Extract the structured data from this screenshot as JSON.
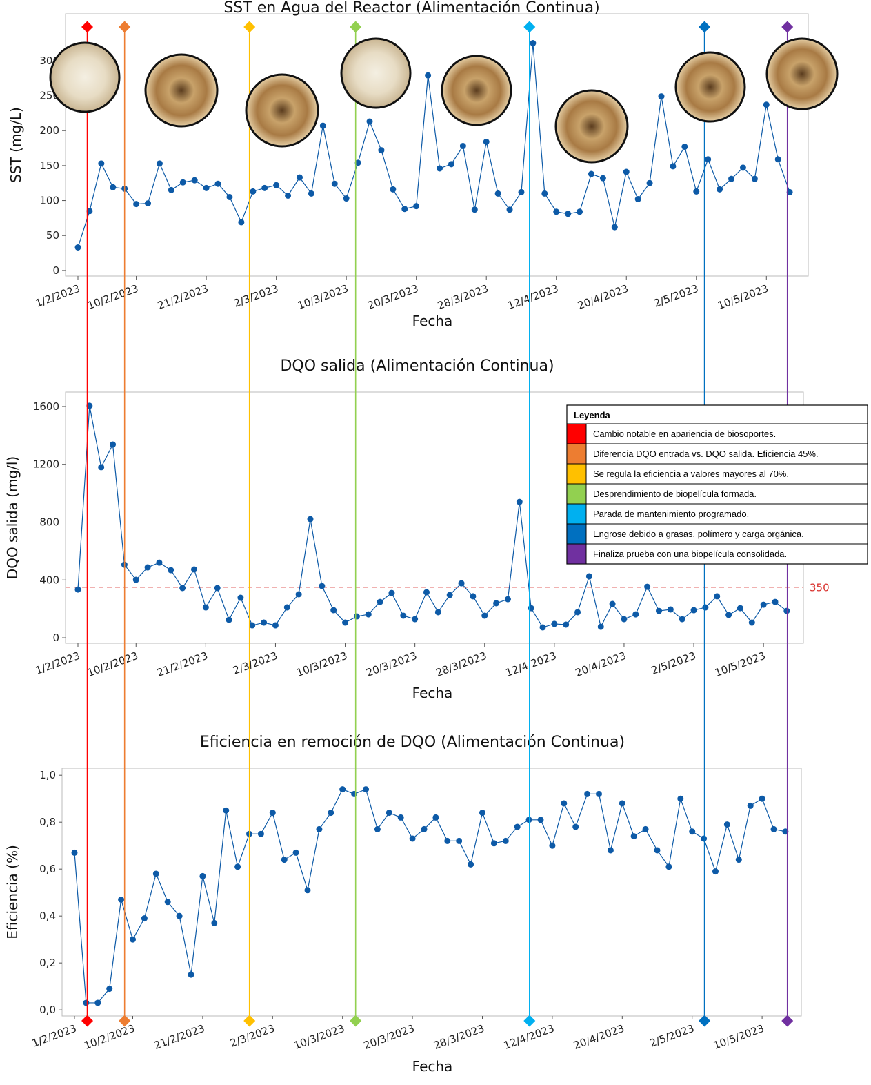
{
  "chart_data": [
    {
      "type": "line",
      "title": "SST en Agua del Reactor (Alimentación Continua)",
      "xlabel": "Fecha",
      "ylabel": "SST (mg/L)",
      "categories": [
        "1/2/2023",
        null,
        null,
        null,
        null,
        "10/2/2023",
        null,
        null,
        null,
        null,
        null,
        "21/2/2023",
        null,
        null,
        null,
        null,
        null,
        "2/3/2023",
        null,
        null,
        null,
        null,
        null,
        "10/3/2023",
        null,
        null,
        null,
        null,
        null,
        "20/3/2023",
        null,
        null,
        null,
        null,
        null,
        "28/3/2023",
        null,
        null,
        null,
        null,
        null,
        "12/4/2023",
        null,
        null,
        null,
        null,
        null,
        "20/4/2023",
        null,
        null,
        null,
        null,
        null,
        "2/5/2023",
        null,
        null,
        null,
        null,
        null,
        "10/5/2023",
        null,
        null
      ],
      "values": [
        33,
        85,
        153,
        119,
        117,
        95,
        96,
        153,
        115,
        126,
        129,
        118,
        124,
        105,
        69,
        113,
        118,
        122,
        107,
        133,
        110,
        207,
        124,
        103,
        154,
        213,
        172,
        116,
        88,
        92,
        279,
        146,
        152,
        178,
        87,
        184,
        110,
        87,
        112,
        325,
        110,
        84,
        81,
        84,
        138,
        132,
        62,
        141,
        102,
        125,
        249,
        149,
        177,
        113,
        159,
        116,
        131,
        147,
        131,
        237,
        159,
        112
      ],
      "color": "#0d5aa7",
      "ylim": [
        -8,
        367
      ],
      "yticks": [
        0,
        50,
        100,
        150,
        200,
        250,
        300
      ]
    },
    {
      "type": "line",
      "title": "DQO salida (Alimentación Continua)",
      "xlabel": "Fecha",
      "ylabel": "DQO salida (mg/l)",
      "categories": [
        "1/2/2023",
        null,
        null,
        null,
        null,
        "10/2/2023",
        null,
        null,
        null,
        null,
        null,
        "21/2/2023",
        null,
        null,
        null,
        null,
        null,
        "2/3/2023",
        null,
        null,
        null,
        null,
        null,
        "10/3/2023",
        null,
        null,
        null,
        null,
        null,
        "20/3/2023",
        null,
        null,
        null,
        null,
        null,
        "28/3/2023",
        null,
        null,
        null,
        null,
        null,
        "12/4/2023",
        null,
        null,
        null,
        null,
        null,
        "20/4/2023",
        null,
        null,
        null,
        null,
        null,
        "2/5/2023",
        null,
        null,
        null,
        null,
        null,
        "10/5/2023",
        null,
        null
      ],
      "values": [
        334,
        1605,
        1180,
        1337,
        506,
        401,
        487,
        520,
        468,
        344,
        473,
        210,
        344,
        124,
        277,
        86,
        105,
        86,
        210,
        301,
        821,
        358,
        191,
        105,
        148,
        162,
        248,
        310,
        153,
        129,
        315,
        177,
        296,
        377,
        287,
        153,
        239,
        267,
        940,
        205,
        72,
        96,
        91,
        177,
        425,
        76,
        234,
        129,
        162,
        353,
        186,
        196,
        129,
        191,
        210,
        287,
        158,
        205,
        105,
        229,
        248,
        186
      ],
      "color": "#0d5aa7",
      "ylim": [
        -38,
        1700
      ],
      "yticks": [
        0,
        400,
        800,
        1200,
        1600
      ],
      "reference_line": {
        "value": 350,
        "color": "#d9302c"
      }
    },
    {
      "type": "line",
      "title": "Eficiencia en remoción de DQO (Alimentación Continua)",
      "xlabel": "Fecha",
      "ylabel": "Eficiencia (%)",
      "categories": [
        "1/2/2023",
        null,
        null,
        null,
        null,
        "10/2/2023",
        null,
        null,
        null,
        null,
        null,
        "21/2/2023",
        null,
        null,
        null,
        null,
        null,
        "2/3/2023",
        null,
        null,
        null,
        null,
        null,
        "10/3/2023",
        null,
        null,
        null,
        null,
        null,
        "20/3/2023",
        null,
        null,
        null,
        null,
        null,
        "28/3/2023",
        null,
        null,
        null,
        null,
        null,
        "12/4/2023",
        null,
        null,
        null,
        null,
        null,
        "20/4/2023",
        null,
        null,
        null,
        null,
        null,
        "2/5/2023",
        null,
        null,
        null,
        null,
        null,
        "10/5/2023",
        null,
        null
      ],
      "values": [
        0.67,
        0.03,
        0.03,
        0.09,
        0.47,
        0.3,
        0.39,
        0.58,
        0.46,
        0.4,
        0.15,
        0.57,
        0.37,
        0.85,
        0.61,
        0.75,
        0.75,
        0.84,
        0.64,
        0.67,
        0.51,
        0.77,
        0.84,
        0.94,
        0.92,
        0.94,
        0.77,
        0.84,
        0.82,
        0.73,
        0.77,
        0.82,
        0.72,
        0.72,
        0.62,
        0.84,
        0.71,
        0.72,
        0.78,
        0.81,
        0.81,
        0.7,
        0.88,
        0.78,
        0.92,
        0.92,
        0.68,
        0.88,
        0.74,
        0.77,
        0.68,
        0.61,
        0.9,
        0.76,
        0.73,
        0.59,
        0.79,
        0.64,
        0.87,
        0.9,
        0.77,
        0.76
      ],
      "color": "#0d5aa7",
      "ylim": [
        -0.026,
        1.03
      ],
      "yticks": [
        {
          "value": 0,
          "label": "0,0"
        },
        {
          "value": 0.2,
          "label": "0,2"
        },
        {
          "value": 0.4,
          "label": "0,4"
        },
        {
          "value": 0.6,
          "label": "0,6"
        },
        {
          "value": 0.8,
          "label": "0,8"
        },
        {
          "value": 1,
          "label": "1,0"
        }
      ]
    }
  ],
  "legend": {
    "title": "Leyenda",
    "entries": [
      {
        "color": "#ff0000",
        "label": "Cambio notable en apariencia de biosoportes.",
        "x": 0.8
      },
      {
        "color": "#ed7d31",
        "label": "Diferencia DQO entrada vs. DQO salida. Eficiencia 45%.",
        "x": 4
      },
      {
        "color": "#ffc000",
        "label": "Se regula la eficiencia a valores mayores al 70%.",
        "x": 14.7
      },
      {
        "color": "#92d050",
        "label": "Desprendimiento de biopelícula formada.",
        "x": 23.8
      },
      {
        "color": "#00b0f0",
        "label": "Parada de mantenimiento programado.",
        "x": 38.7
      },
      {
        "color": "#0070c0",
        "label": "Engrose debido a grasas, polímero y carga orgánica.",
        "x": 53.7
      },
      {
        "color": "#7030a0",
        "label": "Finaliza prueba con una biopelícula consolidada.",
        "x": 60.8
      }
    ]
  }
}
